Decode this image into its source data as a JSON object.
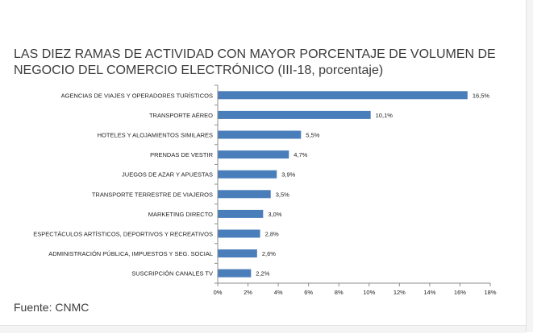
{
  "title": "LAS DIEZ RAMAS DE ACTIVIDAD CON MAYOR PORCENTAJE DE VOLUMEN DE NEGOCIO DEL COMERCIO ELECTRÓNICO (III-18, porcentaje)",
  "source": "Fuente: CNMC",
  "colors": {
    "bar": "#4a7ebb",
    "axis": "#8c8c8c",
    "text": "#3c3c3c"
  },
  "chart_data": {
    "type": "bar",
    "orientation": "horizontal",
    "title": "LAS DIEZ RAMAS DE ACTIVIDAD CON MAYOR PORCENTAJE DE VOLUMEN DE NEGOCIO DEL COMERCIO ELECTRÓNICO (III-18, porcentaje)",
    "categories": [
      "AGENCIAS DE VIAJES Y OPERADORES TURÍSTICOS",
      "TRANSPORTE AÉREO",
      "HOTELES  Y ALOJAMIENTOS SIMILARES",
      "PRENDAS DE VESTIR",
      "JUEGOS DE AZAR Y APUESTAS",
      "TRANSPORTE TERRESTRE DE VIAJEROS",
      "MARKETING DIRECTO",
      "ESPECTÁCULOS ARTÍSTICOS, DEPORTIVOS Y RECREATIVOS",
      "ADMINISTRACIÓN PÚBLICA, IMPUESTOS Y SEG. SOCIAL",
      "SUSCRIPCIÓN CANALES TV"
    ],
    "values": [
      16.5,
      10.1,
      5.5,
      4.7,
      3.9,
      3.5,
      3.0,
      2.8,
      2.6,
      2.2
    ],
    "value_labels": [
      "16,5%",
      "10,1%",
      "5,5%",
      "4,7%",
      "3,9%",
      "3,5%",
      "3,0%",
      "2,8%",
      "2,6%",
      "2,2%"
    ],
    "x_ticks": [
      0,
      2,
      4,
      6,
      8,
      10,
      12,
      14,
      16,
      18
    ],
    "x_tick_labels": [
      "0%",
      "2%",
      "4%",
      "6%",
      "8%",
      "10%",
      "12%",
      "14%",
      "16%",
      "18%"
    ],
    "xlim": [
      0,
      18
    ],
    "xlabel": "",
    "ylabel": "",
    "grid": false,
    "legend": "none"
  }
}
